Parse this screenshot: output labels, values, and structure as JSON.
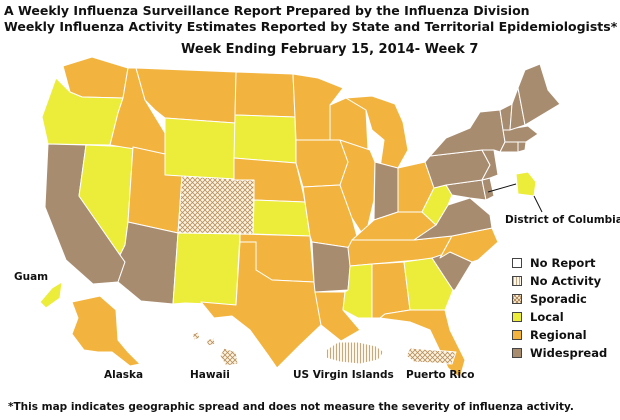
{
  "title_line1": "A Weekly Influenza Surveillance Report Prepared by the Influenza Division",
  "title_line2": "Weekly Influenza Activity Estimates Reported by State and Territorial Epidemiologists*",
  "week_label": "Week Ending February 15, 2014- Week 7",
  "footnote": "*This map indicates geographic spread and does not measure the severity of influenza activity.",
  "region_labels": {
    "dc": "District of Columbia",
    "guam": "Guam",
    "alaska": "Alaska",
    "hawaii": "Hawaii",
    "usvi": "US Virgin Islands",
    "puerto_rico": "Puerto Rico"
  },
  "legend": [
    {
      "key": "no_report",
      "label": "No Report",
      "color": "#ffffff",
      "pattern": "solid"
    },
    {
      "key": "no_activity",
      "label": "No Activity",
      "color": "#fff8ea",
      "pattern": "hatch"
    },
    {
      "key": "sporadic",
      "label": "Sporadic",
      "color": "#fff4df",
      "pattern": "crosshatch"
    },
    {
      "key": "local",
      "label": "Local",
      "color": "#ecec3a",
      "pattern": "solid"
    },
    {
      "key": "regional",
      "label": "Regional",
      "color": "#f2b43e",
      "pattern": "solid"
    },
    {
      "key": "widespread",
      "label": "Widespread",
      "color": "#a88c70",
      "pattern": "solid"
    }
  ],
  "state_activity": {
    "WA": "regional",
    "OR": "local",
    "CA": "widespread",
    "NV": "local",
    "ID": "regional",
    "MT": "regional",
    "WY": "local",
    "UT": "regional",
    "AZ": "widespread",
    "CO": "sporadic",
    "NM": "local",
    "ND": "regional",
    "SD": "local",
    "NE": "regional",
    "KS": "local",
    "OK": "regional",
    "TX": "regional",
    "MN": "regional",
    "IA": "regional",
    "MO": "regional",
    "AR": "widespread",
    "LA": "regional",
    "WI": "regional",
    "IL": "regional",
    "MI": "regional",
    "IN": "widespread",
    "OH": "regional",
    "KY": "regional",
    "TN": "regional",
    "MS": "local",
    "AL": "regional",
    "GA": "local",
    "FL": "regional",
    "SC": "widespread",
    "NC": "regional",
    "VA": "widespread",
    "WV": "local",
    "MD": "widespread",
    "DE": "widespread",
    "PA": "widespread",
    "NY": "widespread",
    "NJ": "widespread",
    "CT": "widespread",
    "RI": "widespread",
    "MA": "widespread",
    "VT": "widespread",
    "NH": "widespread",
    "ME": "widespread",
    "DC": "local",
    "AK": "regional",
    "HI": "sporadic",
    "GU": "local",
    "VI": "no_activity",
    "PR": "sporadic"
  }
}
